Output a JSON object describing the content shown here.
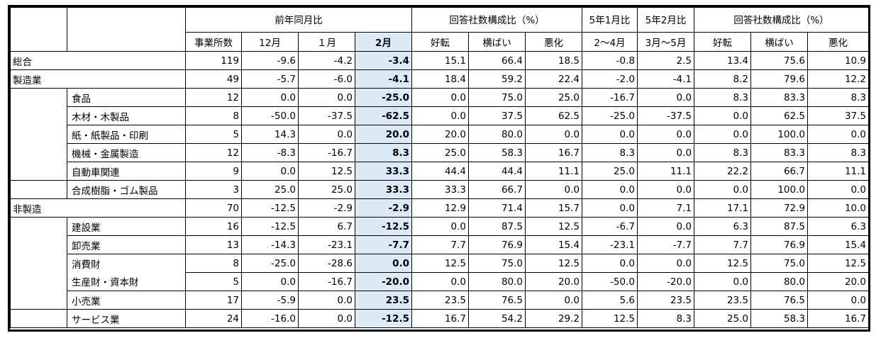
{
  "headers": {
    "group_prev_year": "前年同月比",
    "group_ratio_1": "回答社数構成比（%）",
    "group_jan": "5年1月比",
    "group_feb": "5年2月比",
    "group_ratio_2": "回答社数構成比（%）",
    "col_count": "事業所数",
    "col_dec": "12月",
    "col_jan": "１月",
    "col_feb": "2月",
    "col_good_1": "好転",
    "col_flat_1": "横ばい",
    "col_bad_1": "悪化",
    "col_period_1": "2～4月",
    "col_period_2": "3月～5月",
    "col_good_2": "好転",
    "col_flat_2": "横ばい",
    "col_bad_2": "悪化"
  },
  "rows": [
    {
      "label": "総合",
      "v": [
        "119",
        "-9.6",
        "-4.2",
        "-3.4",
        "15.1",
        "66.4",
        "18.5",
        "-0.8",
        "2.5",
        "13.4",
        "75.6",
        "10.9"
      ]
    },
    {
      "label": "製造業",
      "v": [
        "49",
        "-5.7",
        "-6.0",
        "-4.1",
        "18.4",
        "59.2",
        "22.4",
        "-2.0",
        "-4.1",
        "8.2",
        "79.6",
        "12.2"
      ]
    },
    {
      "label": "食品",
      "v": [
        "12",
        "0.0",
        "0.0",
        "-25.0",
        "0.0",
        "75.0",
        "25.0",
        "-16.7",
        "0.0",
        "8.3",
        "83.3",
        "8.3"
      ]
    },
    {
      "label": "木材・木製品",
      "v": [
        "8",
        "-50.0",
        "-37.5",
        "-62.5",
        "0.0",
        "37.5",
        "62.5",
        "-25.0",
        "-37.5",
        "0.0",
        "62.5",
        "37.5"
      ]
    },
    {
      "label": "紙・紙製品・印刷",
      "v": [
        "5",
        "14.3",
        "0.0",
        "20.0",
        "20.0",
        "80.0",
        "0.0",
        "0.0",
        "0.0",
        "0.0",
        "100.0",
        "0.0"
      ]
    },
    {
      "label": "機械・金属製造",
      "v": [
        "12",
        "-8.3",
        "-16.7",
        "8.3",
        "25.0",
        "58.3",
        "16.7",
        "8.3",
        "0.0",
        "8.3",
        "83.3",
        "8.3"
      ]
    },
    {
      "label": "自動車関連",
      "v": [
        "9",
        "0.0",
        "12.5",
        "33.3",
        "44.4",
        "44.4",
        "11.1",
        "25.0",
        "11.1",
        "22.2",
        "66.7",
        "11.1"
      ]
    },
    {
      "label": "合成樹脂・ゴム製品",
      "v": [
        "3",
        "25.0",
        "25.0",
        "33.3",
        "33.3",
        "66.7",
        "0.0",
        "0.0",
        "0.0",
        "0.0",
        "100.0",
        "0.0"
      ]
    },
    {
      "label": "非製造",
      "v": [
        "70",
        "-12.5",
        "-2.9",
        "-2.9",
        "12.9",
        "71.4",
        "15.7",
        "0.0",
        "7.1",
        "17.1",
        "72.9",
        "10.0"
      ]
    },
    {
      "label": "建設業",
      "v": [
        "16",
        "-12.5",
        "6.7",
        "-12.5",
        "0.0",
        "87.5",
        "12.5",
        "-6.7",
        "0.0",
        "6.3",
        "87.5",
        "6.3"
      ]
    },
    {
      "label": "卸売業",
      "v": [
        "13",
        "-14.3",
        "-23.1",
        "-7.7",
        "7.7",
        "76.9",
        "15.4",
        "-23.1",
        "-7.7",
        "7.7",
        "76.9",
        "15.4"
      ]
    },
    {
      "label": "消費財",
      "v": [
        "8",
        "-25.0",
        "-28.6",
        "0.0",
        "12.5",
        "75.0",
        "12.5",
        "0.0",
        "0.0",
        "12.5",
        "75.0",
        "12.5"
      ]
    },
    {
      "label": "生産財・資本財",
      "v": [
        "5",
        "0.0",
        "-16.7",
        "-20.0",
        "0.0",
        "80.0",
        "20.0",
        "-50.0",
        "-20.0",
        "0.0",
        "80.0",
        "20.0"
      ]
    },
    {
      "label": "小売業",
      "v": [
        "17",
        "-5.9",
        "0.0",
        "23.5",
        "23.5",
        "76.5",
        "0.0",
        "5.6",
        "23.5",
        "23.5",
        "76.5",
        "0.0"
      ]
    },
    {
      "label": "サービス業",
      "v": [
        "24",
        "-16.0",
        "0.0",
        "-12.5",
        "16.7",
        "54.2",
        "29.2",
        "12.5",
        "8.3",
        "25.0",
        "58.3",
        "16.7"
      ]
    }
  ],
  "colors": {
    "highlight": "#dce9f7",
    "border": "#000000"
  }
}
